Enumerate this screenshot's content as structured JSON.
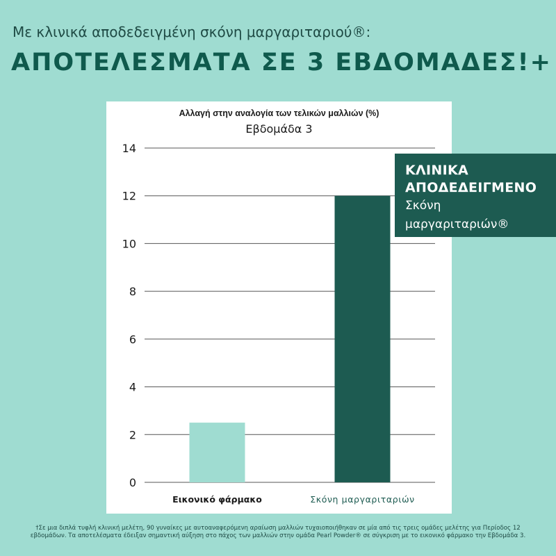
{
  "header": {
    "subtitle": "Με κλινικά αποδεδειγμένη σκόνη μαργαριταριού®:",
    "headline": "ΑΠΟΤΕΛΕΣΜΑΤΑ ΣΕ 3 ΕΒΔΟΜΑΔΕΣ!+"
  },
  "badge": {
    "line1": "ΚΛΙΝΙΚΑ",
    "line2": "ΑΠΟΔΕΔΕΙΓΜΕΝΟ",
    "line3": "Σκόνη",
    "line4": "μαργαριταριών®"
  },
  "chart_data": {
    "type": "bar",
    "title": "Αλλαγή στην αναλογία των τελικών μαλλιών (%)",
    "subtitle": "Εβδομάδα 3",
    "categories": [
      "Εικονικό φάρμακο",
      "Σκόνη μαργαριταριών"
    ],
    "values": [
      2.5,
      12
    ],
    "ylim": [
      0,
      14
    ],
    "yticks": [
      0,
      2,
      4,
      6,
      8,
      10,
      12,
      14
    ],
    "grid": true,
    "colors": [
      "#9fdcd1",
      "#1d5b51"
    ],
    "label_colors": [
      "#1a1a1a",
      "#1d5b51"
    ]
  },
  "footnote": "†Σε μια διπλά τυφλή κλινική μελέτη, 90 γυναίκες με αυτοαναφερόμενη αραίωση μαλλιών τυχαιοποιήθηκαν σε μία από τις τρεις ομάδες μελέτης για Περίοδος 12 εβδομάδων. Τα αποτελέσματα έδειξαν σημαντική αύξηση στο πάχος των μαλλιών στην ομάδα Pearl Powder® σε σύγκριση με το εικονικό φάρμακο την Εβδομάδα 3."
}
